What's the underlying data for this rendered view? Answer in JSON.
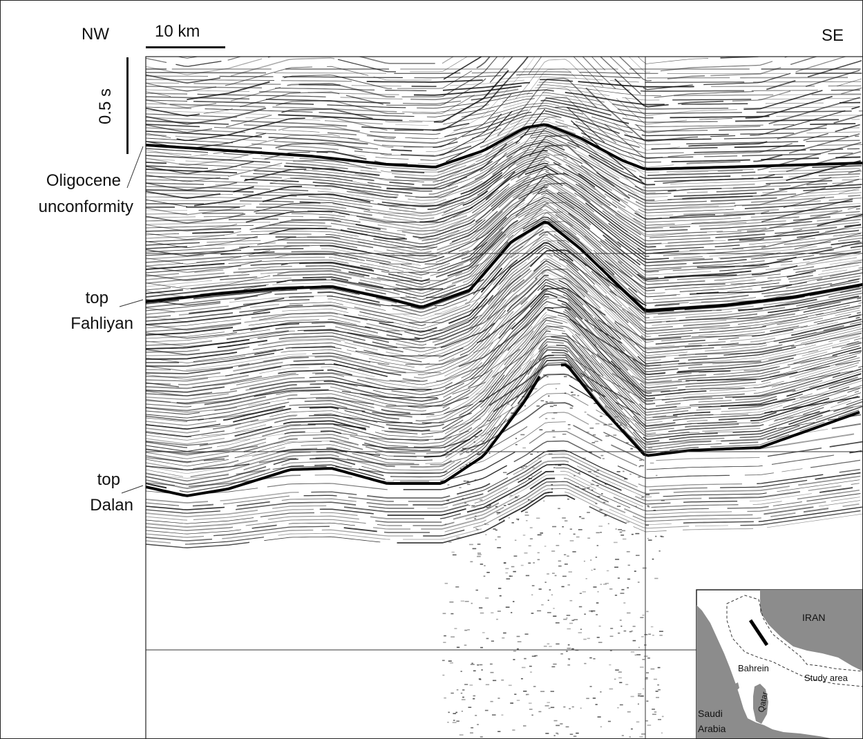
{
  "orientation": {
    "left": "NW",
    "right": "SE"
  },
  "scale_bar": {
    "label": "10 km"
  },
  "time_bar": {
    "label": "0.5 s"
  },
  "horizons": [
    {
      "label_line1": "Oligocene",
      "label_line2": "unconformity"
    },
    {
      "label_line1": "top",
      "label_line2": "Fahliyan"
    },
    {
      "label_line1": "top",
      "label_line2": "Dalan"
    }
  ],
  "inset_map": {
    "labels": {
      "iran": "IRAN",
      "bahrein": "Bahrein",
      "qatar": "Qatar",
      "saudi_line1": "Saudi",
      "saudi_line2": "Arabia",
      "study_area": "Study area"
    },
    "colors": {
      "land": "#8c8c8c",
      "water": "#ffffff"
    }
  },
  "colors": {
    "reflector": "#111111",
    "horizon": "#000000",
    "background": "#ffffff"
  }
}
